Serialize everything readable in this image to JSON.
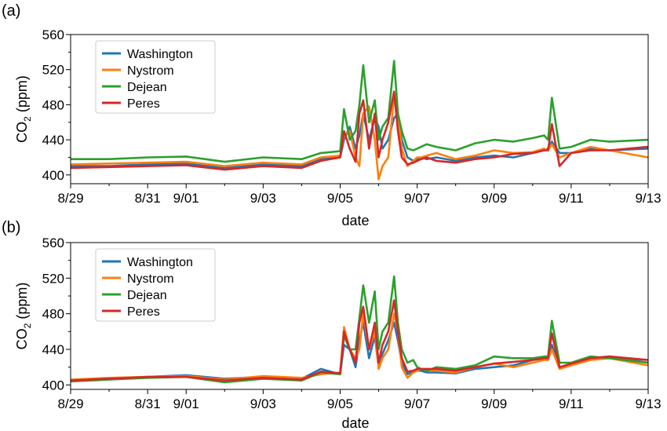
{
  "chart_data": [
    {
      "type": "line",
      "panel_label": "(a)",
      "xlabel": "date",
      "ylabel": "CO",
      "ylabel_sub": "2",
      "ylabel_unit": " (ppm)",
      "xlim": [
        "8/29",
        "9/13"
      ],
      "ylim": [
        390,
        560
      ],
      "x_ticks": [
        "8/29",
        "8/31",
        "9/01",
        "9/03",
        "9/05",
        "9/07",
        "9/09",
        "9/11",
        "9/13"
      ],
      "y_ticks": [
        400,
        440,
        480,
        520,
        560
      ],
      "grid": false,
      "legend_position": "top-left",
      "x_days": [
        0,
        1,
        2,
        3,
        4,
        5,
        6,
        6.5,
        7,
        7.1,
        7.25,
        7.4,
        7.5,
        7.6,
        7.75,
        7.9,
        8,
        8.1,
        8.25,
        8.4,
        8.5,
        8.6,
        8.75,
        8.9,
        9,
        9.1,
        9.25,
        9.5,
        10,
        10.5,
        11,
        11.5,
        12,
        12.3,
        12.4,
        12.5,
        12.7,
        13,
        13.5,
        14,
        15
      ],
      "series": [
        {
          "name": "Washington",
          "color": "#1f77b4",
          "values": [
            410,
            410,
            412,
            413,
            408,
            412,
            410,
            418,
            420,
            440,
            455,
            430,
            445,
            470,
            440,
            465,
            455,
            430,
            440,
            465,
            470,
            440,
            420,
            416,
            418,
            420,
            418,
            420,
            416,
            420,
            422,
            420,
            425,
            428,
            430,
            438,
            425,
            425,
            430,
            428,
            430
          ]
        },
        {
          "name": "Nystrom",
          "color": "#ff7f0e",
          "values": [
            412,
            413,
            414,
            415,
            410,
            414,
            412,
            420,
            422,
            445,
            450,
            420,
            410,
            470,
            478,
            440,
            395,
            410,
            420,
            490,
            470,
            430,
            410,
            416,
            420,
            420,
            422,
            425,
            418,
            422,
            428,
            425,
            426,
            430,
            428,
            435,
            420,
            425,
            432,
            428,
            420
          ]
        },
        {
          "name": "Dejean",
          "color": "#2ca02c",
          "values": [
            418,
            418,
            420,
            421,
            415,
            420,
            418,
            425,
            427,
            475,
            440,
            450,
            480,
            525,
            460,
            485,
            440,
            455,
            465,
            530,
            470,
            450,
            430,
            428,
            430,
            432,
            435,
            432,
            428,
            436,
            440,
            438,
            442,
            445,
            440,
            488,
            430,
            432,
            440,
            438,
            440
          ]
        },
        {
          "name": "Peres",
          "color": "#d62728",
          "values": [
            408,
            409,
            410,
            411,
            406,
            410,
            408,
            416,
            420,
            450,
            430,
            415,
            470,
            485,
            430,
            470,
            420,
            440,
            460,
            495,
            450,
            420,
            412,
            414,
            416,
            418,
            420,
            416,
            414,
            418,
            420,
            424,
            425,
            428,
            428,
            458,
            410,
            425,
            428,
            428,
            432
          ]
        }
      ]
    },
    {
      "type": "line",
      "panel_label": "(b)",
      "xlabel": "date",
      "ylabel": "CO",
      "ylabel_sub": "2",
      "ylabel_unit": " (ppm)",
      "xlim": [
        "8/29",
        "9/13"
      ],
      "ylim": [
        395,
        560
      ],
      "x_ticks": [
        "8/29",
        "8/31",
        "9/01",
        "9/03",
        "9/05",
        "9/07",
        "9/09",
        "9/11",
        "9/13"
      ],
      "y_ticks": [
        400,
        440,
        480,
        520,
        560
      ],
      "grid": false,
      "legend_position": "top-left",
      "x_days": [
        0,
        1,
        2,
        3,
        4,
        5,
        6,
        6.5,
        7,
        7.1,
        7.25,
        7.4,
        7.5,
        7.6,
        7.75,
        7.9,
        8,
        8.1,
        8.25,
        8.4,
        8.5,
        8.6,
        8.75,
        8.9,
        9,
        9.1,
        9.25,
        9.5,
        10,
        10.5,
        11,
        11.5,
        12,
        12.3,
        12.4,
        12.5,
        12.7,
        13,
        13.5,
        14,
        15
      ],
      "series": [
        {
          "name": "Washington",
          "color": "#1f77b4",
          "values": [
            405,
            407,
            409,
            411,
            407,
            409,
            407,
            418,
            412,
            445,
            440,
            420,
            450,
            470,
            430,
            455,
            420,
            435,
            450,
            470,
            450,
            425,
            412,
            415,
            416,
            416,
            414,
            414,
            413,
            418,
            420,
            422,
            428,
            430,
            428,
            445,
            420,
            422,
            430,
            432,
            425
          ]
        },
        {
          "name": "Nystrom",
          "color": "#ff7f0e",
          "values": [
            406,
            408,
            409,
            410,
            406,
            410,
            408,
            412,
            414,
            465,
            440,
            430,
            440,
            480,
            440,
            460,
            418,
            430,
            440,
            480,
            460,
            420,
            408,
            414,
            416,
            418,
            416,
            416,
            414,
            420,
            424,
            420,
            425,
            428,
            428,
            440,
            418,
            422,
            428,
            430,
            422
          ]
        },
        {
          "name": "Dejean",
          "color": "#2ca02c",
          "values": [
            404,
            406,
            408,
            409,
            403,
            407,
            405,
            414,
            412,
            455,
            440,
            440,
            475,
            512,
            470,
            505,
            440,
            460,
            470,
            522,
            470,
            440,
            425,
            428,
            420,
            418,
            416,
            420,
            418,
            422,
            432,
            430,
            430,
            432,
            432,
            472,
            425,
            425,
            432,
            430,
            425
          ]
        },
        {
          "name": "Peres",
          "color": "#d62728",
          "values": [
            405,
            407,
            409,
            409,
            405,
            408,
            406,
            415,
            413,
            460,
            440,
            425,
            470,
            488,
            440,
            470,
            425,
            445,
            460,
            495,
            460,
            430,
            415,
            416,
            418,
            418,
            418,
            418,
            416,
            420,
            424,
            426,
            428,
            430,
            430,
            458,
            420,
            424,
            430,
            432,
            428
          ]
        }
      ]
    }
  ]
}
